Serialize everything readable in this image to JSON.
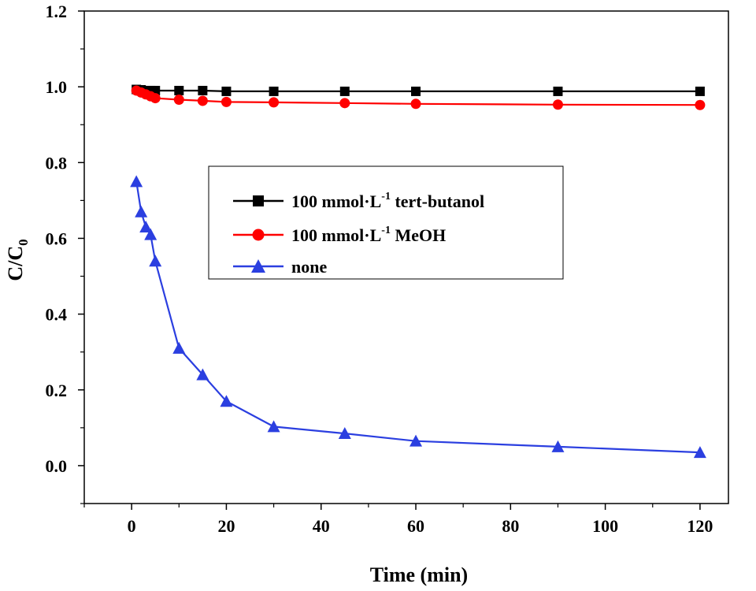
{
  "chart_data": {
    "type": "line",
    "xlabel": "Time (min)",
    "ylabel": {
      "main": "C/C",
      "sub": "0"
    },
    "xlim": [
      -10,
      126
    ],
    "ylim": [
      -0.1,
      1.2
    ],
    "xticks": [
      0,
      20,
      40,
      60,
      80,
      100,
      120
    ],
    "xtick_labels": [
      "0",
      "20",
      "40",
      "60",
      "80",
      "100",
      "120"
    ],
    "yticks": [
      0.0,
      0.2,
      0.4,
      0.6,
      0.8,
      1.0,
      1.2
    ],
    "ytick_labels": [
      "0.0",
      "0.2",
      "0.4",
      "0.6",
      "0.8",
      "1.0",
      "1.2"
    ],
    "legend_position": "center-left",
    "series": [
      {
        "name": {
          "prefix": "100 mmol·L",
          "sup": "-1",
          "suffix": " tert-butanol"
        },
        "color": "#000000",
        "marker": "square",
        "x": [
          1,
          2,
          3,
          4,
          5,
          10,
          15,
          20,
          30,
          45,
          60,
          90,
          120
        ],
        "y": [
          0.993,
          0.992,
          0.99,
          0.99,
          0.99,
          0.99,
          0.99,
          0.988,
          0.988,
          0.988,
          0.988,
          0.988,
          0.988
        ]
      },
      {
        "name": {
          "prefix": "100 mmol·L",
          "sup": "-1",
          "suffix": " MeOH"
        },
        "color": "#ff0000",
        "marker": "circle",
        "x": [
          1,
          2,
          3,
          4,
          5,
          10,
          15,
          20,
          30,
          45,
          60,
          90,
          120
        ],
        "y": [
          0.99,
          0.985,
          0.98,
          0.975,
          0.97,
          0.966,
          0.963,
          0.96,
          0.959,
          0.957,
          0.955,
          0.953,
          0.952
        ]
      },
      {
        "name": {
          "prefix": "none",
          "sup": "",
          "suffix": ""
        },
        "color": "#2b3fe0",
        "marker": "triangle",
        "x": [
          1,
          2,
          3,
          4,
          5,
          10,
          15,
          20,
          30,
          45,
          60,
          90,
          120
        ],
        "y": [
          0.75,
          0.67,
          0.63,
          0.61,
          0.54,
          0.31,
          0.24,
          0.17,
          0.103,
          0.085,
          0.065,
          0.05,
          0.035
        ]
      }
    ]
  }
}
